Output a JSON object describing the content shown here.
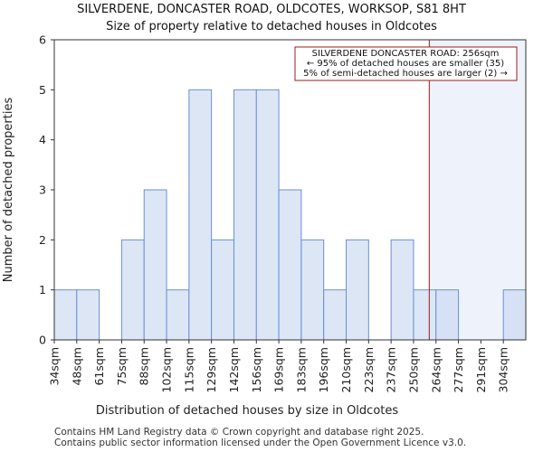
{
  "chart_data": {
    "type": "bar",
    "title": "SILVERDENE, DONCASTER ROAD, OLDCOTES, WORKSOP, S81 8HT",
    "subtitle": "Size of property relative to detached houses in Oldcotes",
    "xlabel": "Distribution of detached houses by size in Oldcotes",
    "ylabel": "Number of detached properties",
    "ylim": [
      0,
      6
    ],
    "yticks": [
      "0",
      "1",
      "2",
      "3",
      "4",
      "5",
      "6"
    ],
    "categories": [
      "34sqm",
      "48sqm",
      "61sqm",
      "75sqm",
      "88sqm",
      "102sqm",
      "115sqm",
      "129sqm",
      "142sqm",
      "156sqm",
      "169sqm",
      "183sqm",
      "196sqm",
      "210sqm",
      "223sqm",
      "237sqm",
      "250sqm",
      "264sqm",
      "277sqm",
      "291sqm",
      "304sqm"
    ],
    "values": [
      1,
      1,
      0,
      2,
      3,
      1,
      5,
      2,
      5,
      5,
      3,
      2,
      1,
      2,
      0,
      2,
      1,
      1,
      0,
      0,
      1
    ],
    "highlight_from_index": 17,
    "marker_value_sqm": 256,
    "annotation": {
      "line1": "SILVERDENE DONCASTER ROAD: 256sqm",
      "line2": "← 95% of detached houses are smaller (35)",
      "line3": "5% of semi-detached houses are larger (2) →"
    },
    "colors": {
      "bar_fill": "#dce6f5",
      "bar_fill_highlight": "#d6e1f5",
      "bar_edge": "#6b8fd4",
      "highlight_bg": "#eef2fb",
      "marker": "#9b1c1c"
    }
  },
  "footer": {
    "line1": "Contains HM Land Registry data © Crown copyright and database right 2025.",
    "line2": "Contains public sector information licensed under the Open Government Licence v3.0."
  }
}
